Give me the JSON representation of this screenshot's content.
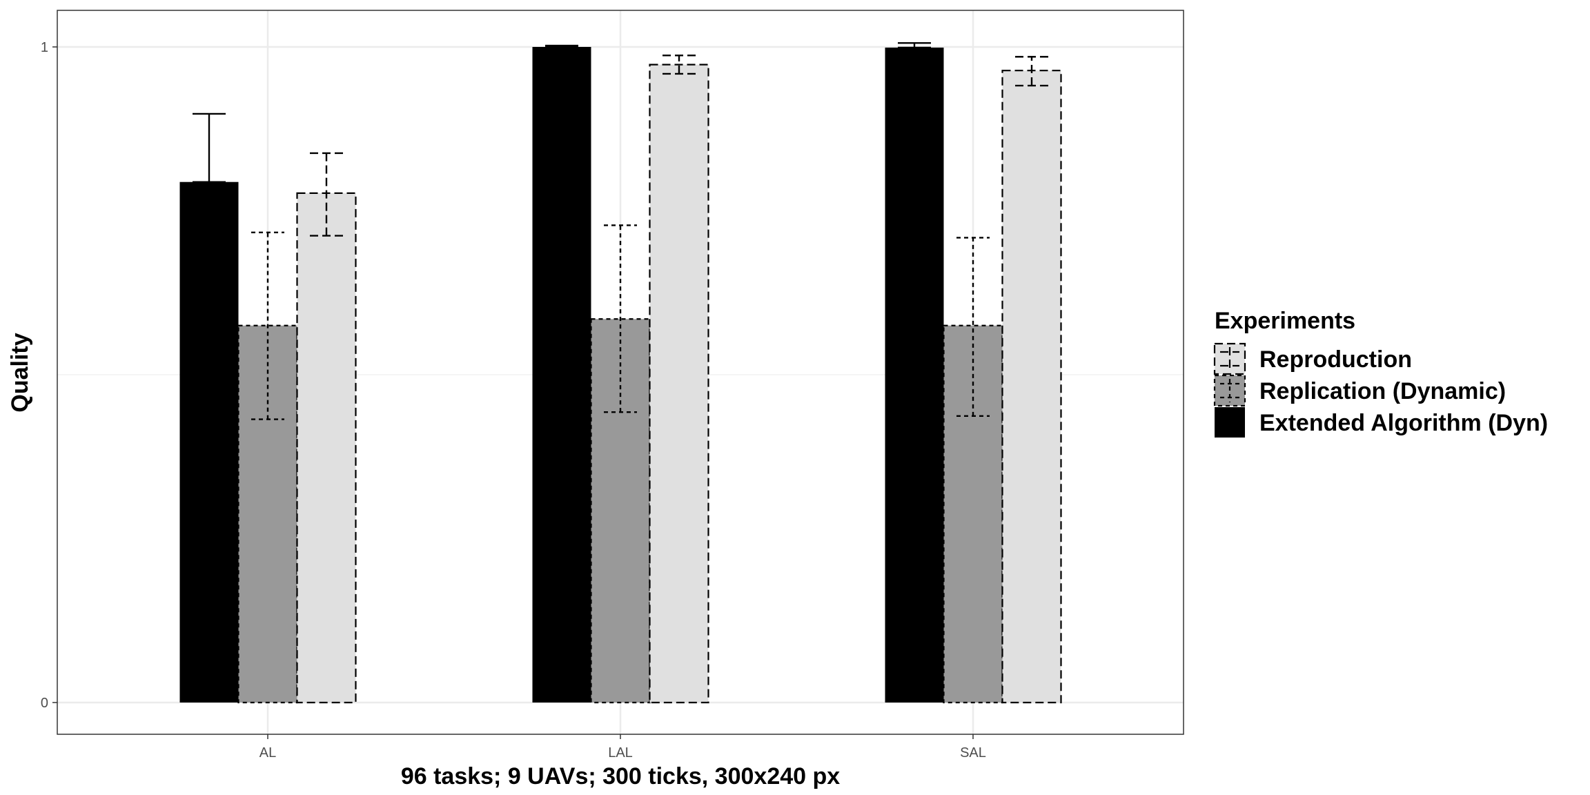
{
  "chart_data": {
    "type": "bar",
    "xlabel": "96 tasks; 9 UAVs; 300 ticks, 300x240 px",
    "ylabel": "Quality",
    "categories": [
      "AL",
      "LAL",
      "SAL"
    ],
    "ylim": [
      0,
      1
    ],
    "yticks": [
      0,
      1
    ],
    "ytick_labels": [
      "0",
      "1"
    ],
    "grid": true,
    "legend_title": "Experiments",
    "legend_position": "right",
    "series": [
      {
        "name": "Extended Algorithm (Dyn)",
        "fill": "#000000",
        "line": "solid",
        "values": [
          0.794,
          1.0,
          0.999
        ],
        "err_low": [
          0.794,
          1.0,
          0.999
        ],
        "err_high": [
          0.898,
          1.002,
          1.006
        ]
      },
      {
        "name": "Replication (Dynamic)",
        "fill": "#999999",
        "line": "dotted",
        "values": [
          0.575,
          0.585,
          0.575
        ],
        "err_low": [
          0.432,
          0.443,
          0.437
        ],
        "err_high": [
          0.717,
          0.728,
          0.709
        ]
      },
      {
        "name": "Reproduction",
        "fill": "#e0e0e0",
        "line": "dashed",
        "values": [
          0.777,
          0.973,
          0.964
        ],
        "err_low": [
          0.712,
          0.959,
          0.941
        ],
        "err_high": [
          0.838,
          0.987,
          0.985
        ]
      }
    ]
  }
}
